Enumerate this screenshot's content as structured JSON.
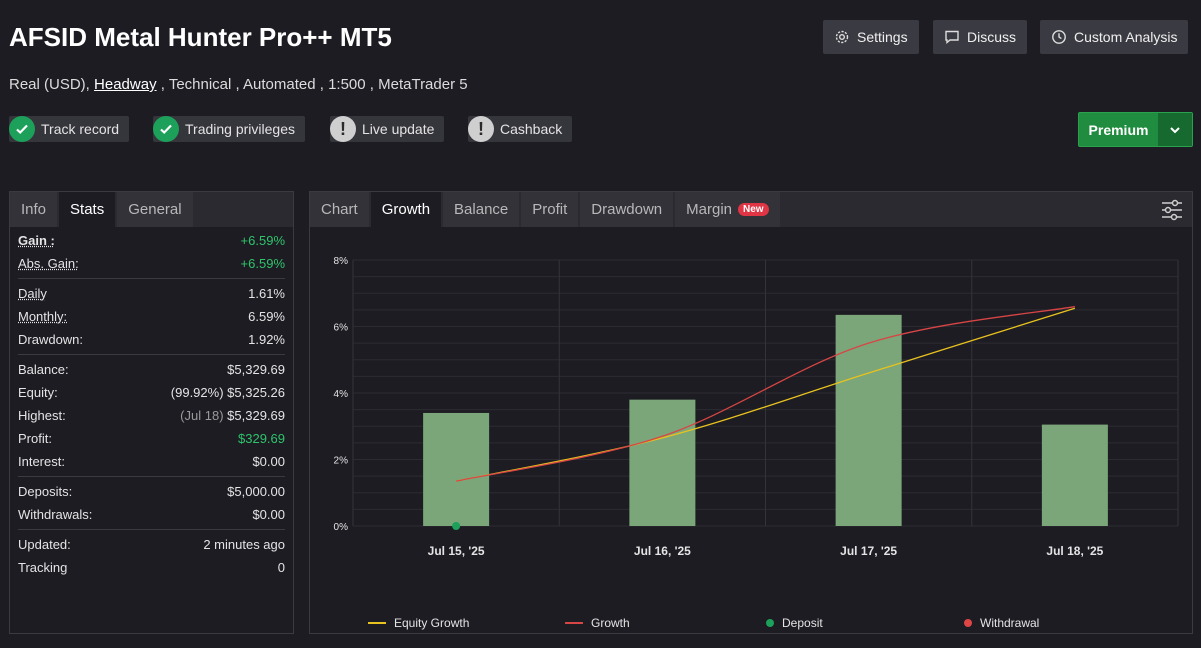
{
  "header": {
    "title": "AFSID Metal Hunter Pro++ MT5",
    "subtitle_pre": "Real (USD),",
    "subtitle_link": "Headway",
    "subtitle_post": ", Technical , Automated , 1:500 , MetaTrader 5"
  },
  "toolbar": {
    "settings": "Settings",
    "discuss": "Discuss",
    "custom_analysis": "Custom Analysis"
  },
  "badges": {
    "track_record": "Track record",
    "trading_privileges": "Trading privileges",
    "live_update": "Live update",
    "cashback": "Cashback"
  },
  "premium": {
    "label": "Premium"
  },
  "left_tabs": [
    "Info",
    "Stats",
    "General"
  ],
  "stats": {
    "gain_label": "Gain :",
    "gain": "+6.59%",
    "abs_gain_label": "Abs. Gain:",
    "abs_gain": "+6.59%",
    "daily_label": "Daily",
    "daily": "1.61%",
    "monthly_label": "Monthly:",
    "monthly": "6.59%",
    "drawdown_label": "Drawdown:",
    "drawdown": "1.92%",
    "balance_label": "Balance:",
    "balance": "$5,329.69",
    "equity_label": "Equity:",
    "equity_pct": "(99.92%)",
    "equity": "$5,325.26",
    "highest_label": "Highest:",
    "highest_date": "(Jul 18)",
    "highest": "$5,329.69",
    "profit_label": "Profit:",
    "profit": "$329.69",
    "interest_label": "Interest:",
    "interest": "$0.00",
    "deposits_label": "Deposits:",
    "deposits": "$5,000.00",
    "withdrawals_label": "Withdrawals:",
    "withdrawals": "$0.00",
    "updated_label": "Updated:",
    "updated": "2 minutes ago",
    "tracking_label": "Tracking",
    "tracking": "0"
  },
  "chart_tabs": [
    "Chart",
    "Growth",
    "Balance",
    "Profit",
    "Drawdown",
    "Margin"
  ],
  "chart_new_tag": "New",
  "colors": {
    "equity": "#e8c21e",
    "growth": "#d84545",
    "deposit": "#1da05a",
    "withdrawal": "#e04545",
    "bar": "#7aa67a"
  },
  "chart_data": {
    "type": "bar",
    "categories": [
      "Jul 15, '25",
      "Jul 16, '25",
      "Jul 17, '25",
      "Jul 18, '25"
    ],
    "ylim": [
      0,
      8
    ],
    "yticks": [
      "0%",
      "2%",
      "4%",
      "6%",
      "8%"
    ],
    "bars": [
      3.4,
      3.8,
      6.35,
      3.05
    ],
    "series": [
      {
        "name": "Equity Growth",
        "values": [
          1.35,
          2.65,
          4.6,
          6.55
        ]
      },
      {
        "name": "Growth",
        "values": [
          1.35,
          2.7,
          5.5,
          6.6
        ]
      }
    ],
    "deposits": [
      {
        "x": "Jul 15, '25",
        "y": 0
      }
    ],
    "legend": [
      "Equity Growth",
      "Growth",
      "Deposit",
      "Withdrawal"
    ]
  }
}
